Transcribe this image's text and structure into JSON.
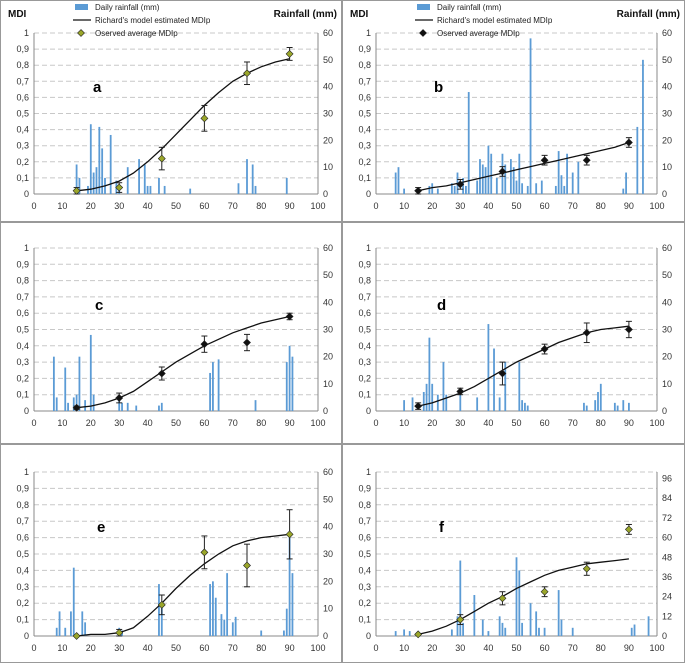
{
  "figure": {
    "panel_order": [
      "a",
      "b",
      "c",
      "d",
      "e",
      "f"
    ]
  },
  "chart_data": [
    {
      "id": "a",
      "type": "bar+line+scatter",
      "label": "a",
      "left_axis_title": "MDI",
      "right_axis_title": "Rainfall (mm)",
      "legend": {
        "items": [
          "Daily rainfall (mm)",
          "Richard's model estimated MDIp",
          "Oserved average MDIp"
        ],
        "placement": "top"
      },
      "xlim": [
        0,
        100
      ],
      "xticks": [
        0,
        10,
        20,
        30,
        40,
        50,
        60,
        70,
        80,
        90,
        100
      ],
      "ylim": [
        0,
        1
      ],
      "yticks": [
        0,
        0.1,
        0.2,
        0.3,
        0.4,
        0.5,
        0.6,
        0.7,
        0.8,
        0.9,
        1
      ],
      "ytick_labels": [
        "0",
        "0,1",
        "0,2",
        "0,3",
        "0,4",
        "0,5",
        "0,6",
        "0,7",
        "0,8",
        "0,9",
        "1"
      ],
      "y2lim": [
        0,
        60
      ],
      "y2ticks": [
        0,
        10,
        20,
        30,
        40,
        50,
        60
      ],
      "rainfall": {
        "x": [
          15,
          16,
          19,
          20,
          21,
          22,
          23,
          24,
          25,
          27,
          29,
          30,
          33,
          37,
          39,
          40,
          41,
          44,
          46,
          55,
          72,
          75,
          77,
          78,
          89
        ],
        "y": [
          11,
          6,
          3,
          26,
          8,
          10,
          25,
          17,
          6,
          22,
          5,
          3,
          10,
          13,
          11,
          3,
          3,
          6,
          3,
          2,
          4,
          13,
          11,
          3,
          6
        ]
      },
      "model": {
        "x": [
          15,
          20,
          25,
          30,
          35,
          40,
          45,
          50,
          55,
          60,
          65,
          70,
          75,
          80,
          85,
          90
        ],
        "y": [
          0.02,
          0.03,
          0.05,
          0.08,
          0.13,
          0.2,
          0.28,
          0.37,
          0.46,
          0.55,
          0.63,
          0.7,
          0.75,
          0.79,
          0.82,
          0.84
        ]
      },
      "observed": {
        "x": [
          15,
          30,
          45,
          60,
          75,
          90
        ],
        "y": [
          0.02,
          0.04,
          0.22,
          0.47,
          0.75,
          0.87
        ],
        "err": [
          0.02,
          0.03,
          0.07,
          0.08,
          0.07,
          0.04
        ]
      },
      "marker_color": "#9aa62a"
    },
    {
      "id": "b",
      "type": "bar+line+scatter",
      "label": "b",
      "left_axis_title": "MDI",
      "right_axis_title": "Rainfall (mm)",
      "legend": {
        "items": [
          "Daily rainfall (mm)",
          "Richard's model estimated MDIp",
          "Oserved average MDIp"
        ],
        "placement": "top"
      },
      "xlim": [
        0,
        100
      ],
      "xticks": [
        0,
        10,
        20,
        30,
        40,
        50,
        60,
        70,
        80,
        90,
        100
      ],
      "ylim": [
        0,
        1
      ],
      "yticks": [
        0,
        0.1,
        0.2,
        0.3,
        0.4,
        0.5,
        0.6,
        0.7,
        0.8,
        0.9,
        1
      ],
      "ytick_labels": [
        "0",
        "0,1",
        "0,2",
        "0,3",
        "0,4",
        "0,5",
        "0,6",
        "0,7",
        "0,8",
        "0,9",
        "1"
      ],
      "y2lim": [
        0,
        60
      ],
      "y2ticks": [
        0,
        10,
        20,
        30,
        40,
        50,
        60
      ],
      "rainfall": {
        "x": [
          7,
          8,
          10,
          19,
          20,
          22,
          27,
          28,
          29,
          31,
          32,
          33,
          36,
          37,
          38,
          39,
          40,
          41,
          43,
          45,
          46,
          48,
          49,
          50,
          51,
          52,
          54,
          55,
          57,
          59,
          64,
          65,
          66,
          67,
          68,
          70,
          72,
          88,
          89,
          93,
          95
        ],
        "y": [
          8,
          10,
          2,
          3,
          4,
          2,
          4,
          3,
          8,
          6,
          3,
          38,
          5,
          13,
          11,
          10,
          18,
          15,
          6,
          15,
          11,
          13,
          10,
          5,
          15,
          4,
          3,
          58,
          4,
          5,
          3,
          16,
          7,
          3,
          15,
          8,
          12,
          2,
          8,
          25,
          50
        ]
      },
      "model": {
        "x": [
          15,
          20,
          25,
          30,
          35,
          40,
          45,
          50,
          55,
          60,
          65,
          70,
          75,
          80,
          85,
          90
        ],
        "y": [
          0.02,
          0.04,
          0.05,
          0.07,
          0.09,
          0.11,
          0.13,
          0.15,
          0.17,
          0.19,
          0.21,
          0.23,
          0.25,
          0.27,
          0.29,
          0.32
        ]
      },
      "observed": {
        "x": [
          15,
          30,
          45,
          60,
          75,
          90
        ],
        "y": [
          0.02,
          0.06,
          0.14,
          0.21,
          0.21,
          0.32
        ],
        "err": [
          0.02,
          0.03,
          0.03,
          0.03,
          0.03,
          0.03
        ]
      },
      "marker_color": "#111111"
    },
    {
      "id": "c",
      "type": "bar+line+scatter",
      "label": "c",
      "xlim": [
        0,
        100
      ],
      "xticks": [
        0,
        10,
        20,
        30,
        40,
        50,
        60,
        70,
        80,
        90,
        100
      ],
      "ylim": [
        0,
        1
      ],
      "yticks": [
        0,
        0.1,
        0.2,
        0.3,
        0.4,
        0.5,
        0.6,
        0.7,
        0.8,
        0.9,
        1
      ],
      "ytick_labels": [
        "0",
        "0,1",
        "0,2",
        "0,3",
        "0,4",
        "0,5",
        "0,6",
        "0,7",
        "0,8",
        "0,9",
        "1"
      ],
      "y2lim": [
        0,
        60
      ],
      "y2ticks": [
        0,
        10,
        20,
        30,
        40,
        50,
        60
      ],
      "rainfall": {
        "x": [
          7,
          8,
          11,
          12,
          14,
          15,
          16,
          18,
          20,
          21,
          30,
          31,
          33,
          36,
          44,
          45,
          62,
          63,
          65,
          78,
          89,
          90,
          91
        ],
        "y": [
          20,
          5,
          16,
          3,
          5,
          6,
          20,
          4,
          28,
          6,
          5,
          3,
          3,
          2,
          2,
          3,
          14,
          18,
          19,
          4,
          18,
          24,
          20
        ]
      },
      "model": {
        "x": [
          15,
          20,
          25,
          30,
          35,
          40,
          45,
          50,
          55,
          60,
          65,
          70,
          75,
          80,
          85,
          90
        ],
        "y": [
          0.02,
          0.03,
          0.05,
          0.08,
          0.12,
          0.18,
          0.24,
          0.3,
          0.35,
          0.4,
          0.44,
          0.48,
          0.51,
          0.54,
          0.56,
          0.58
        ]
      },
      "observed": {
        "x": [
          15,
          30,
          45,
          60,
          75,
          90
        ],
        "y": [
          0.02,
          0.08,
          0.23,
          0.41,
          0.42,
          0.58
        ],
        "err": [
          0.01,
          0.03,
          0.04,
          0.05,
          0.05,
          0.02
        ]
      },
      "marker_color": "#111111"
    },
    {
      "id": "d",
      "type": "bar+line+scatter",
      "label": "d",
      "xlim": [
        0,
        100
      ],
      "xticks": [
        0,
        10,
        20,
        30,
        40,
        50,
        60,
        70,
        80,
        90,
        100
      ],
      "ylim": [
        0,
        1
      ],
      "yticks": [
        0,
        0.1,
        0.2,
        0.3,
        0.4,
        0.5,
        0.6,
        0.7,
        0.8,
        0.9,
        1
      ],
      "ytick_labels": [
        "0",
        "0,1",
        "0,2",
        "0,3",
        "0,4",
        "0,5",
        "0,6",
        "0,7",
        "0,8",
        "0,9",
        "1"
      ],
      "y2lim": [
        0,
        60
      ],
      "y2ticks": [
        0,
        10,
        20,
        30,
        40,
        50,
        60
      ],
      "rainfall": {
        "x": [
          10,
          13,
          17,
          18,
          19,
          20,
          22,
          24,
          25,
          30,
          36,
          40,
          42,
          44,
          46,
          51,
          52,
          53,
          54,
          74,
          75,
          78,
          79,
          80,
          85,
          86,
          88,
          90
        ],
        "y": [
          4,
          5,
          7,
          10,
          27,
          10,
          6,
          18,
          6,
          6,
          5,
          32,
          23,
          5,
          18,
          18,
          4,
          3,
          2,
          3,
          2,
          4,
          7,
          10,
          3,
          2,
          4,
          3
        ]
      },
      "model": {
        "x": [
          15,
          20,
          25,
          30,
          35,
          40,
          45,
          50,
          55,
          60,
          65,
          70,
          75,
          80,
          85,
          90
        ],
        "y": [
          0.03,
          0.05,
          0.08,
          0.11,
          0.15,
          0.2,
          0.25,
          0.3,
          0.34,
          0.38,
          0.42,
          0.45,
          0.48,
          0.5,
          0.51,
          0.52
        ]
      },
      "observed": {
        "x": [
          15,
          30,
          45,
          60,
          75,
          90
        ],
        "y": [
          0.03,
          0.12,
          0.23,
          0.38,
          0.48,
          0.5
        ],
        "err": [
          0.02,
          0.02,
          0.07,
          0.03,
          0.06,
          0.05
        ]
      },
      "marker_color": "#111111"
    },
    {
      "id": "e",
      "type": "bar+line+scatter",
      "label": "e",
      "xlim": [
        0,
        100
      ],
      "xticks": [
        0,
        10,
        20,
        30,
        40,
        50,
        60,
        70,
        80,
        90,
        100
      ],
      "ylim": [
        0,
        1
      ],
      "yticks": [
        0,
        0.1,
        0.2,
        0.3,
        0.4,
        0.5,
        0.6,
        0.7,
        0.8,
        0.9,
        1
      ],
      "ytick_labels": [
        "0",
        "0,1",
        "0,2",
        "0,3",
        "0,4",
        "0,5",
        "0,6",
        "0,7",
        "0,8",
        "0,9",
        "1"
      ],
      "y2lim": [
        0,
        60
      ],
      "y2ticks": [
        0,
        10,
        20,
        30,
        40,
        50,
        60
      ],
      "rainfall": {
        "x": [
          8,
          9,
          11,
          13,
          14,
          17,
          18,
          30,
          31,
          44,
          45,
          62,
          63,
          64,
          66,
          67,
          68,
          70,
          71,
          80,
          88,
          89,
          90,
          91
        ],
        "y": [
          3,
          9,
          3,
          9,
          25,
          9,
          5,
          3,
          2,
          19,
          12,
          19,
          20,
          14,
          8,
          6,
          23,
          5,
          7,
          2,
          2,
          10,
          38,
          23
        ]
      },
      "model": {
        "x": [
          15,
          20,
          25,
          30,
          35,
          40,
          45,
          50,
          55,
          60,
          65,
          70,
          75,
          80,
          85,
          90
        ],
        "y": [
          0.0,
          0.01,
          0.01,
          0.02,
          0.05,
          0.12,
          0.2,
          0.29,
          0.37,
          0.44,
          0.5,
          0.55,
          0.58,
          0.6,
          0.61,
          0.62
        ]
      },
      "observed": {
        "x": [
          15,
          30,
          45,
          60,
          75,
          90
        ],
        "y": [
          0.0,
          0.02,
          0.19,
          0.51,
          0.43,
          0.62
        ],
        "err": [
          0.0,
          0.02,
          0.06,
          0.1,
          0.13,
          0.15
        ]
      },
      "marker_color": "#9aa62a"
    },
    {
      "id": "f",
      "type": "bar+line+scatter",
      "label": "f",
      "xlim": [
        0,
        100
      ],
      "xticks": [
        0,
        10,
        20,
        30,
        40,
        50,
        60,
        70,
        80,
        90,
        100
      ],
      "ylim": [
        0,
        1
      ],
      "yticks": [
        0,
        0.1,
        0.2,
        0.3,
        0.4,
        0.5,
        0.6,
        0.7,
        0.8,
        0.9,
        1
      ],
      "ytick_labels": [
        "0",
        "0,1",
        "0,2",
        "0,3",
        "0,4",
        "0,5",
        "0,6",
        "0,7",
        "0,8",
        "0,9",
        "1"
      ],
      "y2lim": [
        0,
        100
      ],
      "y2ticks": [
        0,
        12,
        24,
        36,
        48,
        60,
        72,
        84,
        96
      ],
      "rainfall": {
        "x": [
          7,
          10,
          12,
          27,
          29,
          30,
          31,
          35,
          38,
          40,
          44,
          45,
          46,
          50,
          51,
          52,
          55,
          57,
          58,
          60,
          65,
          66,
          70,
          91,
          92,
          97
        ],
        "y": [
          3,
          4,
          3,
          4,
          12,
          46,
          8,
          25,
          10,
          3,
          12,
          8,
          5,
          48,
          40,
          8,
          20,
          15,
          5,
          5,
          28,
          10,
          5,
          5,
          7,
          12
        ]
      },
      "model": {
        "x": [
          15,
          20,
          25,
          30,
          35,
          40,
          45,
          50,
          55,
          60,
          65,
          70,
          75,
          80,
          85,
          90
        ],
        "y": [
          0.01,
          0.03,
          0.06,
          0.1,
          0.15,
          0.2,
          0.24,
          0.29,
          0.33,
          0.37,
          0.4,
          0.42,
          0.44,
          0.45,
          0.46,
          0.47
        ]
      },
      "observed": {
        "x": [
          15,
          30,
          45,
          60,
          75,
          90
        ],
        "y": [
          0.01,
          0.1,
          0.23,
          0.27,
          0.41,
          0.65
        ],
        "err": [
          0.0,
          0.03,
          0.04,
          0.03,
          0.04,
          0.03
        ]
      },
      "marker_color": "#9aa62a"
    }
  ],
  "style": {
    "bar_color": "#5b9bd5",
    "line_color": "#111111",
    "grid_color": "#c8c8c8",
    "frame_color": "#999999"
  }
}
